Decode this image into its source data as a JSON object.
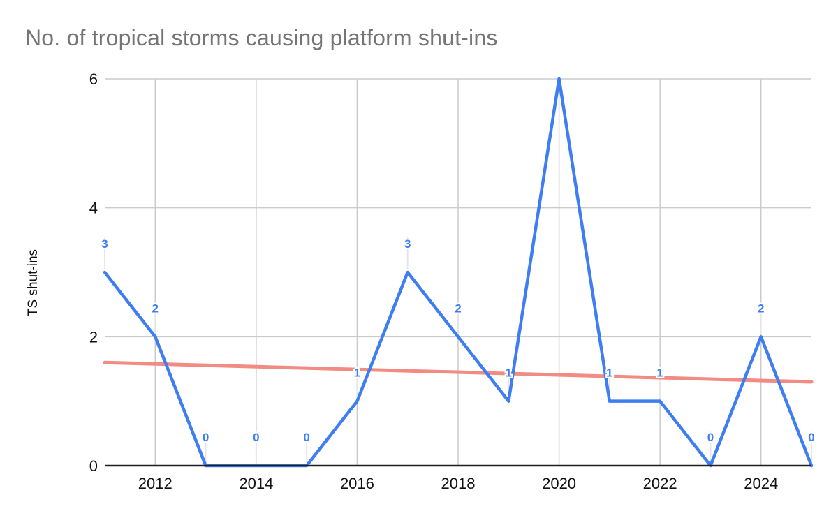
{
  "chart_data": {
    "type": "line",
    "title": "No. of tropical storms causing platform shut-ins",
    "xlabel": "",
    "ylabel": "TS shut-ins",
    "x": [
      2011,
      2012,
      2013,
      2014,
      2015,
      2016,
      2017,
      2018,
      2019,
      2020,
      2021,
      2022,
      2023,
      2024,
      2025
    ],
    "series": [
      {
        "name": "TS shut-ins",
        "values": [
          3,
          2,
          0,
          0,
          0,
          1,
          3,
          2,
          1,
          6,
          1,
          1,
          0,
          2,
          0
        ],
        "point_labels": [
          "3",
          "2",
          "0",
          "0",
          "0",
          "1",
          "3",
          "2",
          "1",
          "",
          "1",
          "1",
          "0",
          "2",
          "0"
        ],
        "color": "#3F7DF2"
      }
    ],
    "trendline": {
      "start_x": 2011,
      "end_x": 2025,
      "start_value": 1.6,
      "end_value": 1.3,
      "color": "#F28B82"
    },
    "ylim": [
      0,
      6
    ],
    "yticks": [
      0,
      2,
      4,
      6
    ],
    "xticks": [
      2012,
      2014,
      2016,
      2018,
      2020,
      2022,
      2024
    ],
    "grid": true,
    "legend_position": "none",
    "colors": {
      "gridline": "#CBCBCB",
      "axis_line": "#212121",
      "tick_label": "#111111",
      "title": "#757575",
      "label_leader": "#E6E6E6",
      "background": "#FFFFFF"
    }
  }
}
